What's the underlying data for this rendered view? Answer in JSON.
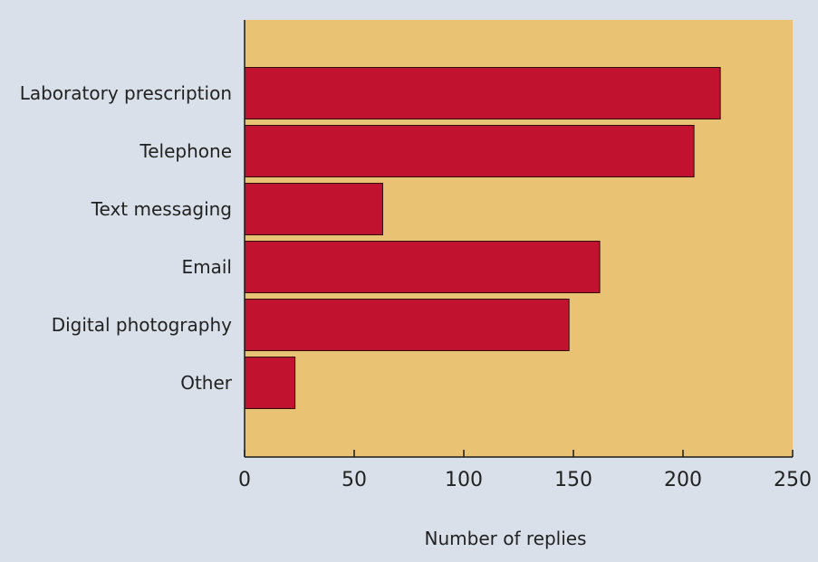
{
  "chart_data": {
    "type": "bar",
    "orientation": "horizontal",
    "categories": [
      "Laboratory prescription",
      "Telephone",
      "Text messaging",
      "Email",
      "Digital photography",
      "Other"
    ],
    "values": [
      217,
      205,
      63,
      162,
      148,
      23
    ],
    "xlabel": "Number of replies",
    "xlim": [
      0,
      250
    ],
    "xticks": [
      0,
      50,
      100,
      150,
      200,
      250
    ],
    "grid": false,
    "colors": {
      "background": "#d9e0ea",
      "plot_area": "#e9c373",
      "bar": "#c1122f",
      "bar_edge": "#2a1010",
      "axis": "#1a1a1a",
      "text": "#222222"
    }
  }
}
